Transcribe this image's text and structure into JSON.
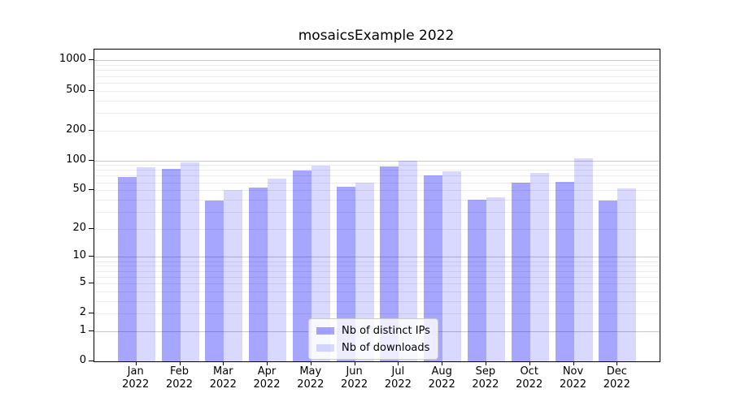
{
  "title": "mosaicsExample 2022",
  "chart_data": {
    "type": "bar",
    "title": "mosaicsExample 2022",
    "categories": [
      "Jan",
      "Feb",
      "Mar",
      "Apr",
      "May",
      "Jun",
      "Jul",
      "Aug",
      "Sep",
      "Oct",
      "Nov",
      "Dec"
    ],
    "year": "2022",
    "series": [
      {
        "name": "Nb of distinct IPs",
        "color": "rgba(0,0,255,0.35)",
        "values": [
          68,
          82,
          39,
          53,
          79,
          54,
          87,
          70,
          40,
          60,
          61,
          39
        ]
      },
      {
        "name": "Nb of downloads",
        "color": "rgba(0,0,255,0.15)",
        "values": [
          85,
          95,
          50,
          65,
          89,
          60,
          100,
          78,
          42,
          74,
          104,
          52
        ]
      }
    ],
    "xlabel": "",
    "ylabel": "",
    "yscale": "log1p",
    "yticks": [
      1000,
      500,
      200,
      100,
      50,
      20,
      10,
      5,
      2,
      1,
      0
    ],
    "ylim": [
      0,
      1285
    ],
    "grid": "horizontal, major and minor",
    "legend_position": "lower center"
  },
  "colors": {
    "bar_dark": "rgba(0,0,255,0.35)",
    "bar_light": "rgba(0,0,255,0.15)",
    "grid_major": "#c9c9c9",
    "grid_minor": "#ececec",
    "spine": "#000000",
    "background": "#ffffff"
  }
}
